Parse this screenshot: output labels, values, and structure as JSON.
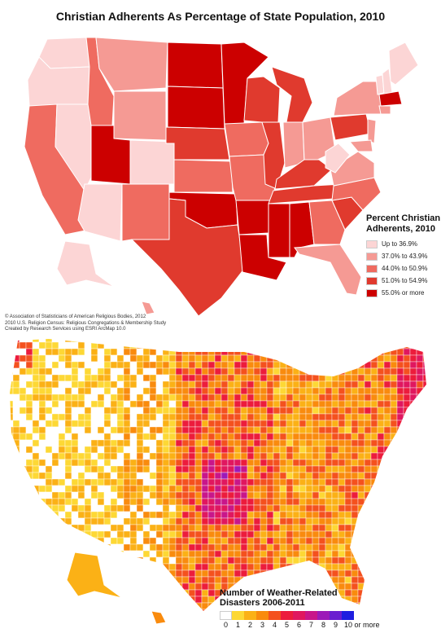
{
  "top_map": {
    "title": "Christian Adherents As Percentage of State Population, 2010",
    "legend": {
      "title_line1": "Percent Christian",
      "title_line2": "Adherents, 2010",
      "classes": [
        {
          "label": "Up to 36.9%",
          "color": "#fcd5d5"
        },
        {
          "label": "37.0% to 43.9%",
          "color": "#f59a94"
        },
        {
          "label": "44.0% to 50.9%",
          "color": "#ef6b60"
        },
        {
          "label": "51.0% to 54.9%",
          "color": "#e03a2e"
        },
        {
          "label": "55.0% or more",
          "color": "#cc0000"
        }
      ]
    },
    "credits": [
      "© Association of Statisticians of American Religious Bodies, 2012",
      "2010 U.S. Religion Census: Religious Congregations & Membership Study",
      "Created by Research Services using ESRI ArcMap 10.0"
    ]
  },
  "bottom_map": {
    "legend": {
      "title_line1": "Number of Weather-Related",
      "title_line2": "Disasters 2006-2011",
      "ticks": [
        "0",
        "1",
        "2",
        "3",
        "4",
        "5",
        "6",
        "7",
        "8",
        "9",
        "10 or more"
      ],
      "colors": [
        "#ffffff",
        "#fdd835",
        "#fbb116",
        "#f98b0e",
        "#f4511e",
        "#ec1c3c",
        "#e0175f",
        "#c8168a",
        "#9c1ab8",
        "#6a1ed0",
        "#1f1ee0"
      ]
    }
  }
}
